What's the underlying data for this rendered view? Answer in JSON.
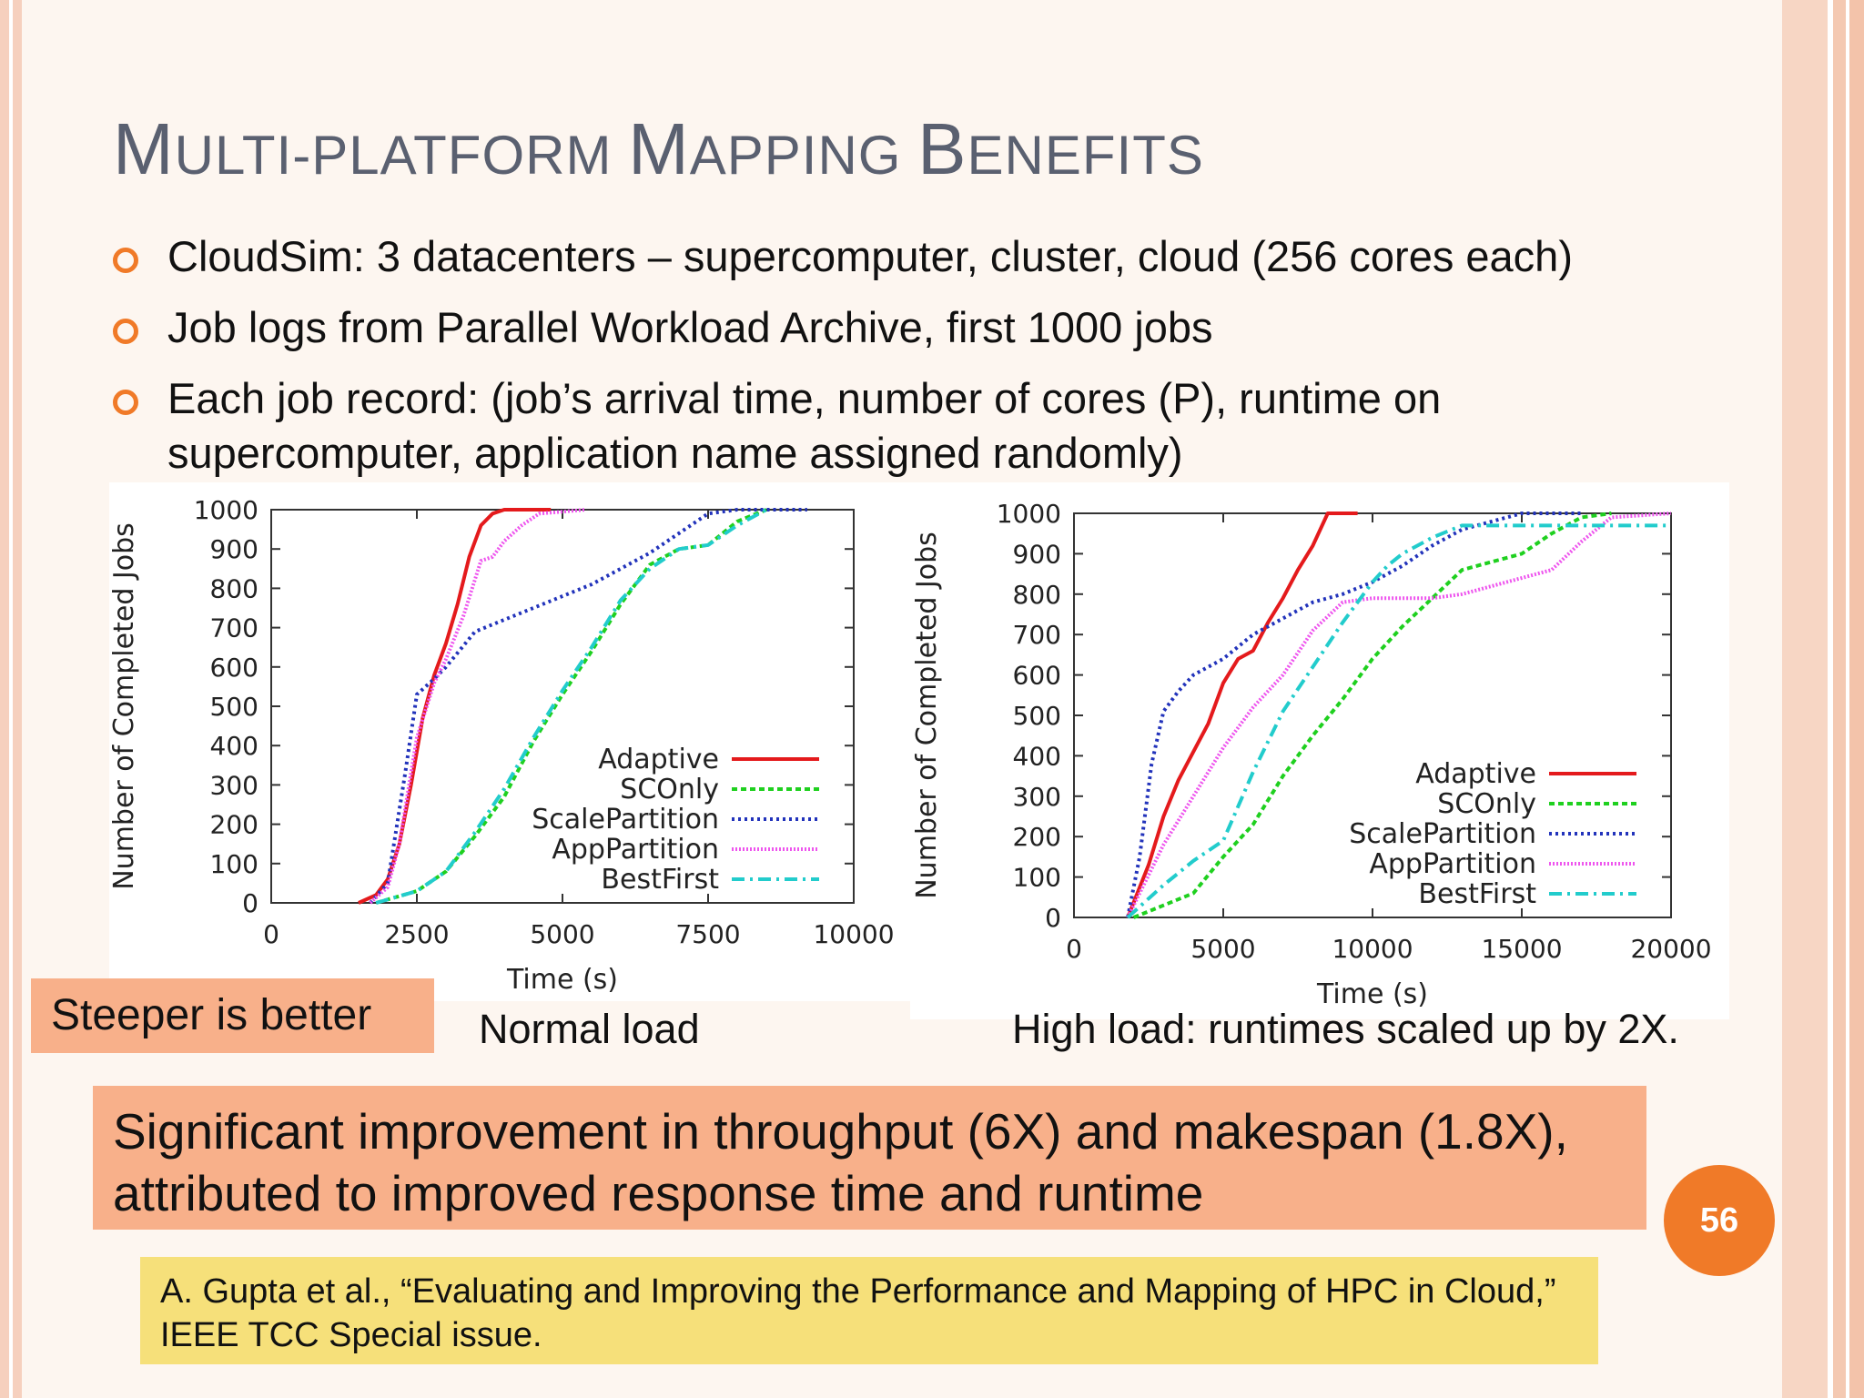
{
  "title": {
    "first_cap": "M",
    "first_rest": "ULTI-PLATFORM ",
    "second_cap": "M",
    "second_rest": "APPING ",
    "third_cap": "B",
    "third_rest": "ENEFITS"
  },
  "bullets": [
    "CloudSim: 3 datacenters – supercomputer, cluster, cloud (256 cores each)",
    "Job logs from Parallel Workload Archive, first 1000 jobs",
    "Each job record: (job’s arrival time, number of cores (P), runtime on supercomputer, application name assigned randomly)"
  ],
  "tag": "Steeper is better",
  "captions": {
    "left": "Normal load",
    "right": "High load: runtimes scaled up by 2X."
  },
  "summary": "Significant improvement in throughput (6X) and makespan (1.8X), attributed to improved response time and runtime",
  "citation": "A. Gupta et al., “Evaluating and Improving the Performance and Mapping of HPC in Cloud,” IEEE TCC Special issue.",
  "page_number": "56",
  "colors": {
    "accent": "#f07a28",
    "tag_bg": "#f8b08a",
    "cite_bg": "#f6e07a",
    "Adaptive": "#e41a1c",
    "SCOnly": "#1fd01f",
    "ScalePartition": "#2233bb",
    "AppPartition": "#ee55ee",
    "BestFirst": "#22cccc"
  },
  "chart_data": [
    {
      "type": "line",
      "xlabel": "Time (s)",
      "ylabel": "Number of Completed Jobs",
      "xlim": [
        0,
        10000
      ],
      "ylim": [
        0,
        1000
      ],
      "xticks": [
        "0",
        "2500",
        "5000",
        "7500",
        "10000"
      ],
      "yticks": [
        "0",
        "100",
        "200",
        "300",
        "400",
        "500",
        "600",
        "700",
        "800",
        "900",
        "1000"
      ],
      "legend_position": "bottom-right",
      "series": [
        {
          "name": "Adaptive",
          "x": [
            1500,
            1800,
            2000,
            2200,
            2400,
            2600,
            2800,
            3000,
            3200,
            3400,
            3600,
            3800,
            4000,
            4300,
            4800
          ],
          "y": [
            0,
            20,
            60,
            150,
            300,
            470,
            580,
            660,
            760,
            880,
            960,
            990,
            1000,
            1000,
            1000
          ]
        },
        {
          "name": "SCOnly",
          "x": [
            1800,
            2500,
            3000,
            3500,
            4000,
            4500,
            5000,
            5500,
            6000,
            6500,
            7000,
            7500,
            8000,
            8500
          ],
          "y": [
            0,
            30,
            80,
            170,
            270,
            410,
            530,
            640,
            760,
            860,
            900,
            910,
            970,
            1000
          ]
        },
        {
          "name": "ScalePartition",
          "x": [
            1700,
            2000,
            2300,
            2500,
            2800,
            3000,
            3500,
            4000,
            4500,
            5000,
            5500,
            6000,
            6500,
            7000,
            7500,
            8000,
            8500,
            9200
          ],
          "y": [
            0,
            50,
            330,
            530,
            570,
            600,
            690,
            720,
            750,
            780,
            810,
            850,
            890,
            940,
            990,
            1000,
            1000,
            1000
          ]
        },
        {
          "name": "AppPartition",
          "x": [
            1700,
            2000,
            2200,
            2500,
            2800,
            3000,
            3300,
            3600,
            3800,
            4000,
            4300,
            4600,
            5400
          ],
          "y": [
            0,
            40,
            150,
            420,
            560,
            620,
            730,
            870,
            880,
            920,
            960,
            990,
            1000
          ]
        },
        {
          "name": "BestFirst",
          "x": [
            1800,
            2500,
            3000,
            3500,
            4000,
            4500,
            5000,
            5500,
            6000,
            6500,
            7000,
            7500,
            8000,
            8500
          ],
          "y": [
            0,
            30,
            80,
            180,
            290,
            420,
            540,
            650,
            770,
            850,
            900,
            910,
            960,
            1000
          ]
        }
      ]
    },
    {
      "type": "line",
      "xlabel": "Time (s)",
      "ylabel": "Number of Completed Jobs",
      "xlim": [
        0,
        20000
      ],
      "ylim": [
        0,
        1000
      ],
      "xticks": [
        "0",
        "5000",
        "10000",
        "15000",
        "20000"
      ],
      "yticks": [
        "0",
        "100",
        "200",
        "300",
        "400",
        "500",
        "600",
        "700",
        "800",
        "900",
        "1000"
      ],
      "legend_position": "bottom-right",
      "series": [
        {
          "name": "Adaptive",
          "x": [
            1800,
            2500,
            3000,
            3500,
            4000,
            4500,
            5000,
            5500,
            6000,
            6500,
            7000,
            7500,
            8000,
            8500,
            9500
          ],
          "y": [
            0,
            130,
            250,
            340,
            410,
            480,
            580,
            640,
            660,
            730,
            790,
            860,
            920,
            1000,
            1000
          ]
        },
        {
          "name": "SCOnly",
          "x": [
            2000,
            3000,
            4000,
            5000,
            6000,
            7000,
            8000,
            9000,
            10000,
            11000,
            12000,
            13000,
            14000,
            15000,
            16000,
            17000,
            18000
          ],
          "y": [
            0,
            30,
            60,
            150,
            230,
            350,
            450,
            540,
            640,
            720,
            790,
            860,
            880,
            900,
            950,
            990,
            1000
          ]
        },
        {
          "name": "ScalePartition",
          "x": [
            1800,
            2200,
            2600,
            3000,
            3500,
            4000,
            5000,
            6000,
            7000,
            8000,
            9000,
            10000,
            11000,
            12000,
            13000,
            14000,
            15000,
            17000
          ],
          "y": [
            0,
            150,
            380,
            510,
            560,
            600,
            640,
            700,
            740,
            780,
            800,
            830,
            870,
            920,
            960,
            980,
            1000,
            1000
          ]
        },
        {
          "name": "AppPartition",
          "x": [
            1800,
            3000,
            4000,
            5000,
            6000,
            7000,
            8000,
            9000,
            10000,
            11000,
            12000,
            13000,
            14000,
            15000,
            16000,
            17000,
            18000,
            20000
          ],
          "y": [
            0,
            180,
            300,
            420,
            520,
            600,
            710,
            780,
            790,
            790,
            790,
            800,
            820,
            840,
            860,
            930,
            990,
            1000
          ]
        },
        {
          "name": "BestFirst",
          "x": [
            1800,
            3000,
            4000,
            5000,
            6000,
            7000,
            8000,
            9000,
            10000,
            10500,
            11000,
            12000,
            13000,
            14000,
            20000
          ],
          "y": [
            0,
            80,
            140,
            190,
            360,
            510,
            620,
            730,
            830,
            870,
            900,
            940,
            970,
            970,
            970
          ]
        }
      ]
    }
  ]
}
